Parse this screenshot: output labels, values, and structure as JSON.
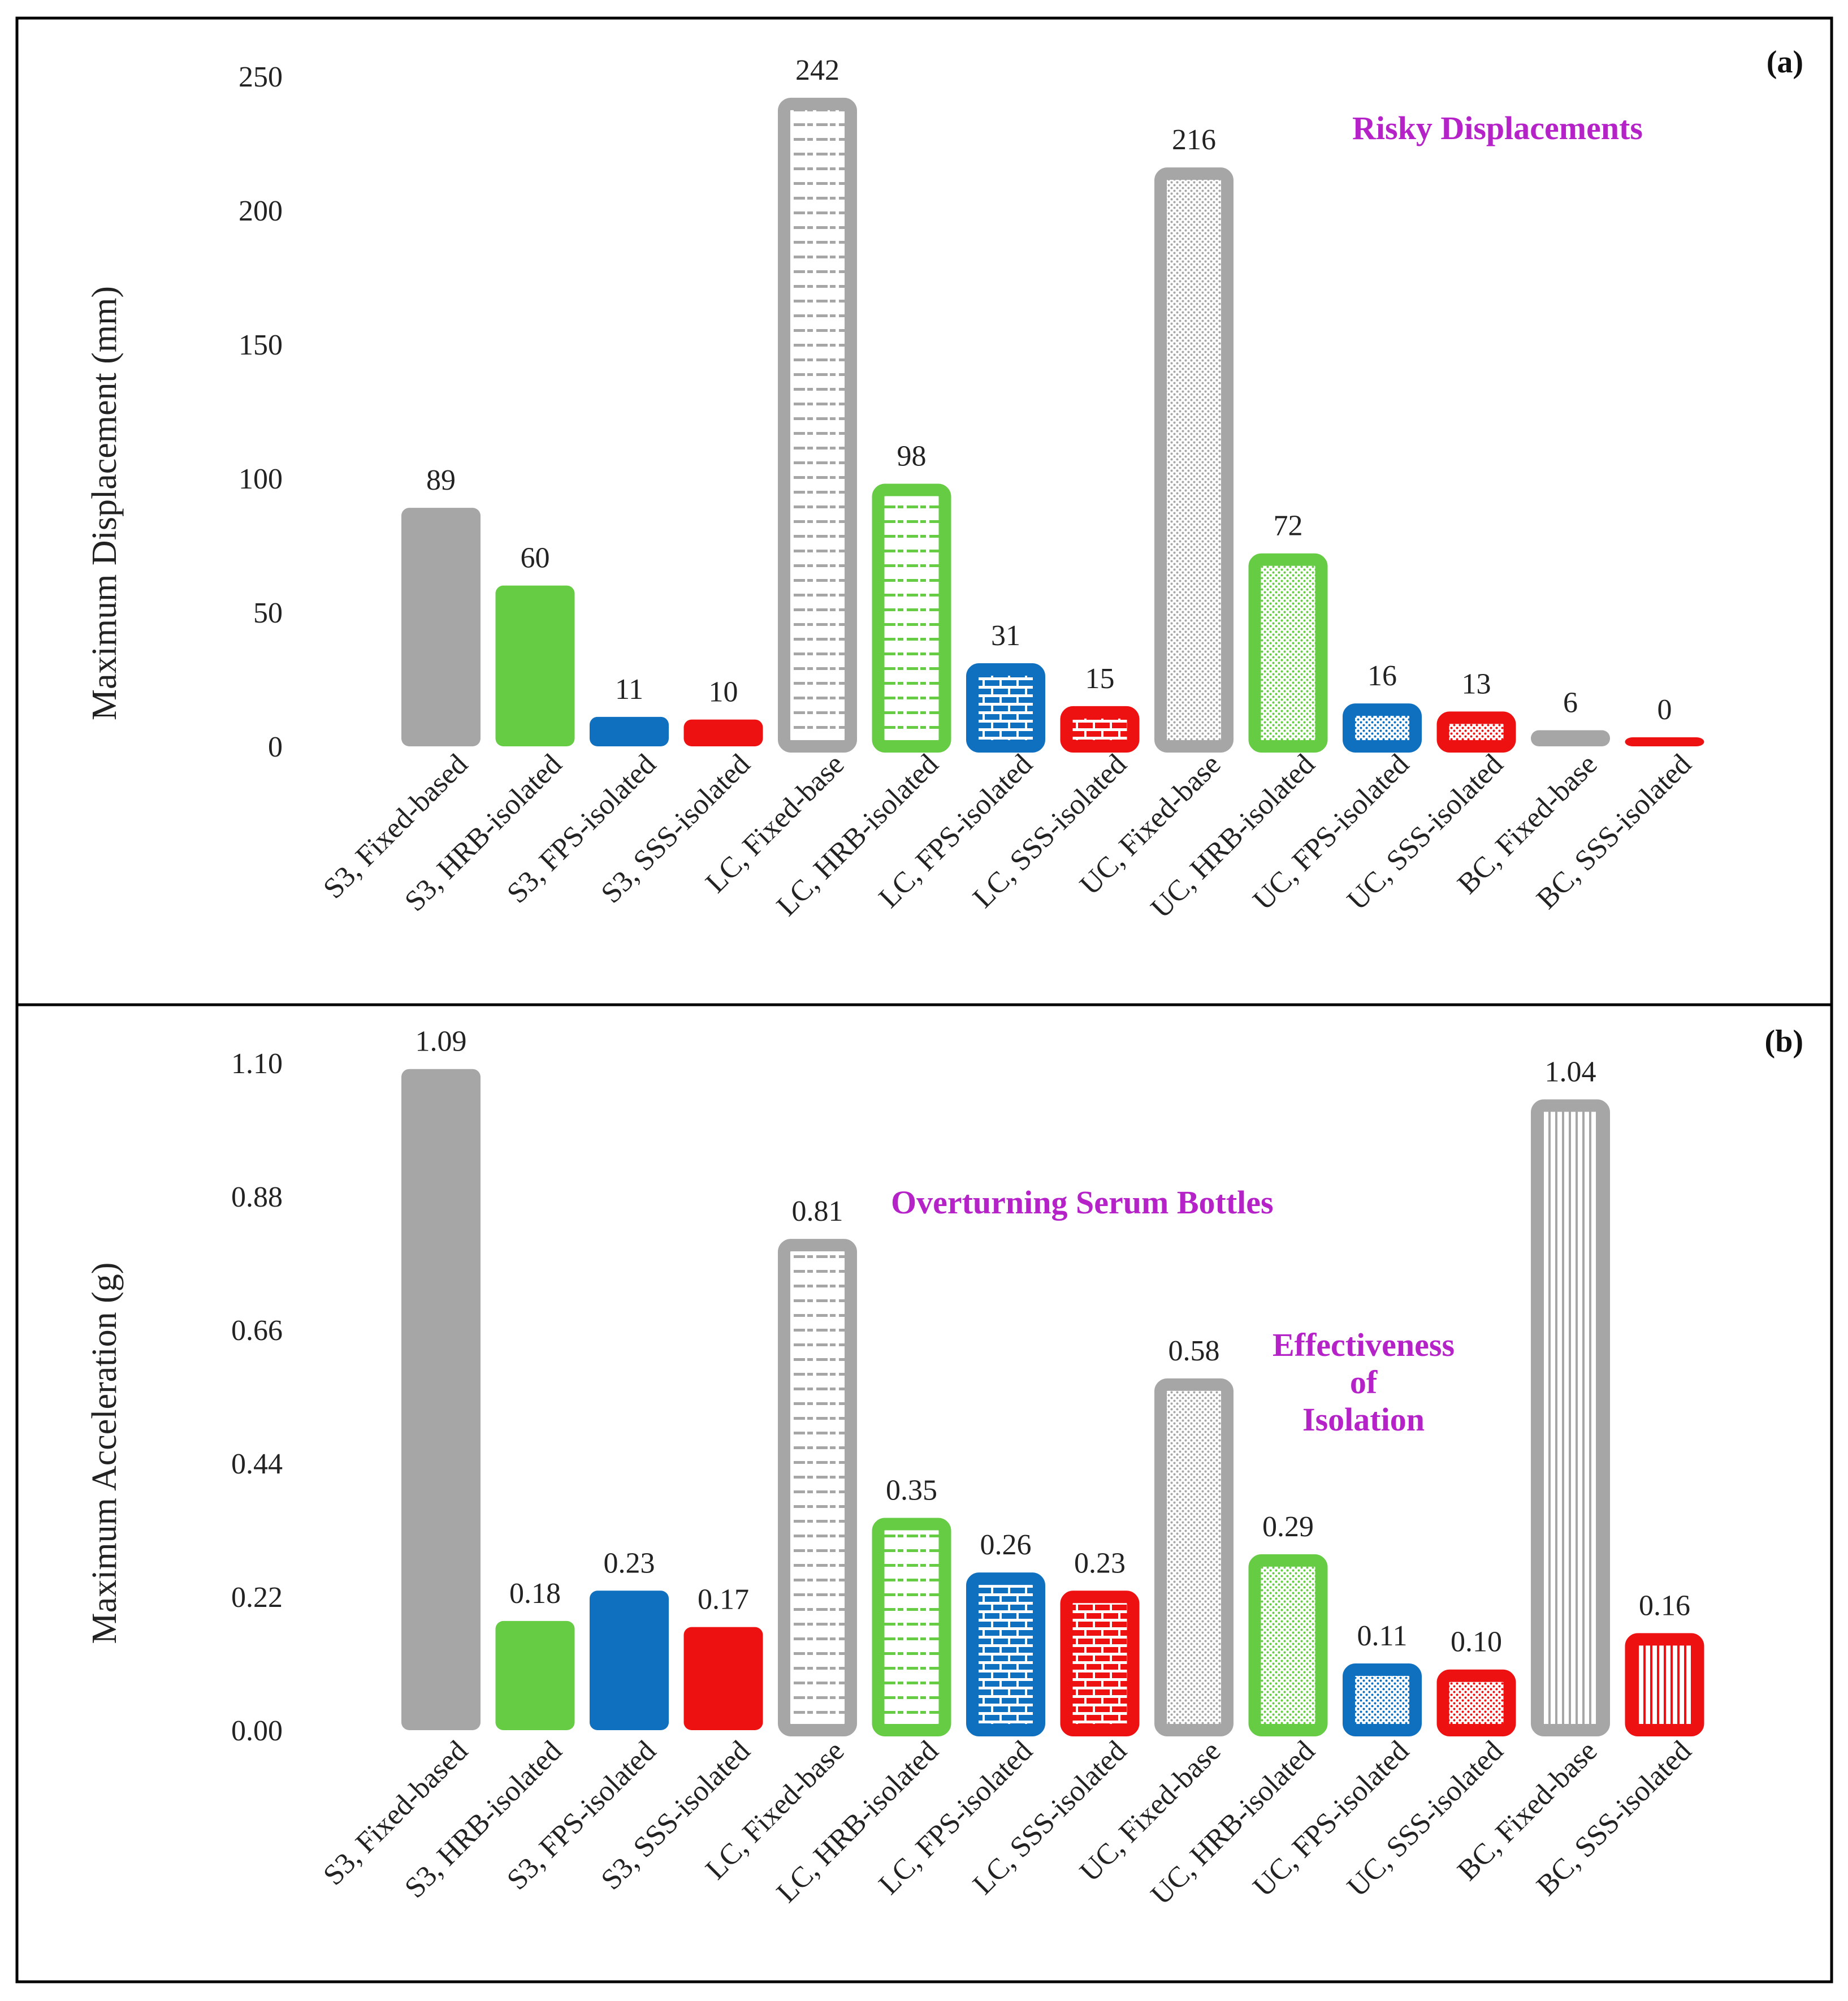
{
  "colors": {
    "gray": "#a6a6a6",
    "green": "#66cc44",
    "blue": "#1070c0",
    "red": "#ee1111",
    "annotation": "#b422c8",
    "frame": "#000000"
  },
  "chart_data": [
    {
      "type": "bar",
      "panel_tag": "(a)",
      "ylabel": "Maximum Displacement (mm)",
      "ylim": [
        0,
        250
      ],
      "yticks": [
        "0",
        "50",
        "100",
        "150",
        "200",
        "250"
      ],
      "categories": [
        "S3, Fixed-based",
        "S3, HRB-isolated",
        "S3, FPS-isolated",
        "S3, SSS-isolated",
        "LC, Fixed-base",
        "LC, HRB-isolated",
        "LC, FPS-isolated",
        "LC, SSS-isolated",
        "UC, Fixed-base",
        "UC, HRB-isolated",
        "UC, FPS-isolated",
        "UC, SSS-isolated",
        "BC, Fixed-base",
        "BC, SSS-isolated"
      ],
      "values": [
        89,
        60,
        11,
        10,
        242,
        98,
        31,
        15,
        216,
        72,
        16,
        13,
        6,
        0
      ],
      "value_labels": [
        "89",
        "60",
        "11",
        "10",
        "242",
        "98",
        "31",
        "15",
        "216",
        "72",
        "16",
        "13",
        "6",
        "0"
      ],
      "bar_colors": [
        "gray",
        "green",
        "blue",
        "red",
        "gray",
        "green",
        "blue",
        "red",
        "gray",
        "green",
        "blue",
        "red",
        "gray",
        "red"
      ],
      "bar_styles": [
        "solid",
        "solid",
        "solid",
        "solid",
        "dash",
        "dash",
        "brick",
        "brick",
        "dots",
        "dots",
        "dots",
        "dots",
        "solid",
        "solid"
      ],
      "annotations": [
        {
          "text": "Risky Displacements",
          "near_category": "UC, Fixed-base"
        }
      ]
    },
    {
      "type": "bar",
      "panel_tag": "(b)",
      "ylabel": "Maximum Acceleration (g)",
      "ylim": [
        0,
        1.1
      ],
      "yticks": [
        "0.00",
        "0.22",
        "0.44",
        "0.66",
        "0.88",
        "1.10"
      ],
      "categories": [
        "S3, Fixed-based",
        "S3, HRB-isolated",
        "S3, FPS-isolated",
        "S3, SSS-isolated",
        "LC, Fixed-base",
        "LC, HRB-isolated",
        "LC, FPS-isolated",
        "LC, SSS-isolated",
        "UC, Fixed-base",
        "UC, HRB-isolated",
        "UC, FPS-isolated",
        "UC, SSS-isolated",
        "BC, Fixed-base",
        "BC, SSS-isolated"
      ],
      "values": [
        1.09,
        0.18,
        0.23,
        0.17,
        0.81,
        0.35,
        0.26,
        0.23,
        0.58,
        0.29,
        0.11,
        0.1,
        1.04,
        0.16
      ],
      "value_labels": [
        "1.09",
        "0.18",
        "0.23",
        "0.17",
        "0.81",
        "0.35",
        "0.26",
        "0.23",
        "0.58",
        "0.29",
        "0.11",
        "0.10",
        "1.04",
        "0.16"
      ],
      "bar_colors": [
        "gray",
        "green",
        "blue",
        "red",
        "gray",
        "green",
        "blue",
        "red",
        "gray",
        "green",
        "blue",
        "red",
        "gray",
        "red"
      ],
      "bar_styles": [
        "solid",
        "solid",
        "solid",
        "solid",
        "dash",
        "dash",
        "brick",
        "brick",
        "dots",
        "dots",
        "dots",
        "dots",
        "vlines",
        "vlines"
      ],
      "annotations": [
        {
          "text": "Overturning Serum Bottles",
          "near_category": "LC, Fixed-base"
        },
        {
          "text": "Effectiveness of Isolation",
          "lines": [
            "Effectiveness",
            "of",
            "Isolation"
          ],
          "near_category": "UC, Fixed-base"
        }
      ]
    }
  ]
}
